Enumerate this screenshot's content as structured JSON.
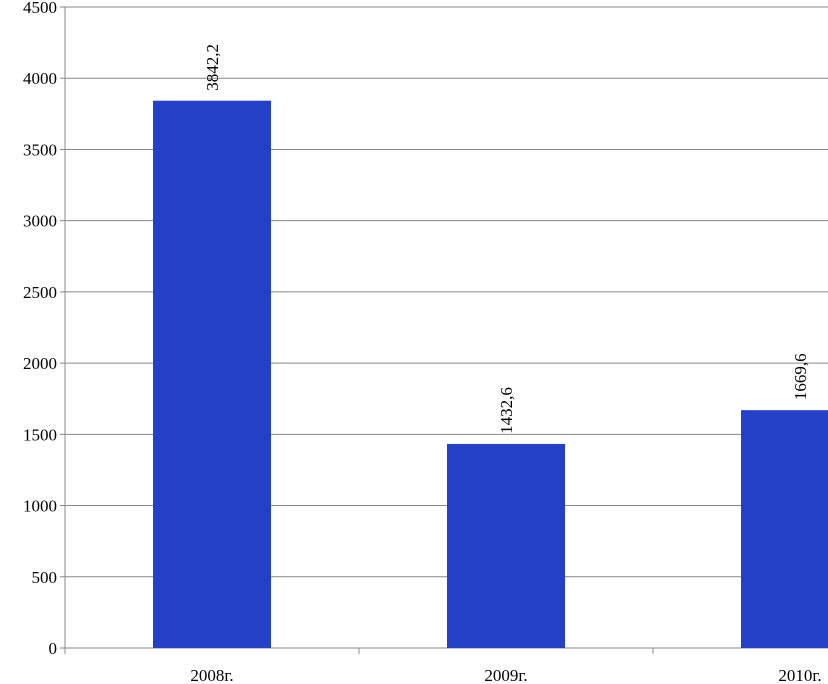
{
  "chart_data": {
    "type": "bar",
    "categories": [
      "2008г.",
      "2009г.",
      "2010г."
    ],
    "values": [
      3842.2,
      1432.6,
      1669.6
    ],
    "value_labels": [
      "3842,2",
      "1432,6",
      "1669,6"
    ],
    "color": "#2340c6",
    "ylim": [
      0,
      4500
    ],
    "yticks": [
      0,
      500,
      1000,
      1500,
      2000,
      2500,
      3000,
      3500,
      4000,
      4500
    ],
    "grid": true
  }
}
